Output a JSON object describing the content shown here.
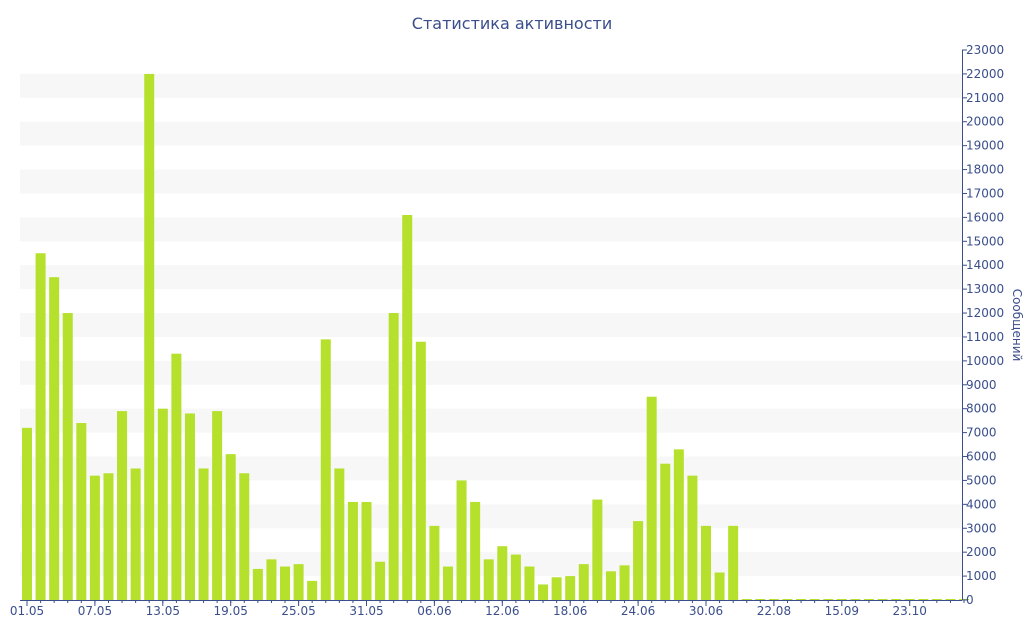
{
  "chart_data": {
    "type": "bar",
    "title": "Статистика активности",
    "ylabel": "Сообщений",
    "ylim": [
      0,
      23000
    ],
    "ytick_step": 1000,
    "y_axis_side": "right",
    "grid": "horizontal bands",
    "bar_color": "#b5e02c",
    "band_color": "#f7f7f7",
    "axis_color": "#3a4e8c",
    "x_tick_labels": [
      "01.05",
      "07.05",
      "13.05",
      "19.05",
      "25.05",
      "31.05",
      "06.06",
      "12.06",
      "18.06",
      "24.06",
      "30.06",
      "22.08",
      "15.09",
      "23.10"
    ],
    "values": [
      7200,
      14500,
      13500,
      12000,
      7400,
      5200,
      5300,
      7900,
      5500,
      22000,
      8000,
      10300,
      7800,
      5500,
      7900,
      6100,
      5300,
      1300,
      1700,
      1400,
      1500,
      800,
      10900,
      5500,
      4100,
      4100,
      1600,
      12000,
      16100,
      10800,
      3100,
      1400,
      5000,
      4100,
      1700,
      2250,
      1900,
      1400,
      650,
      950,
      1000,
      1500,
      4200,
      1200,
      1450,
      3300,
      8500,
      5700,
      6300,
      5200,
      3100,
      1150,
      3100,
      0,
      0,
      0,
      0,
      0,
      0,
      0,
      0,
      0,
      0,
      0,
      0,
      0,
      0,
      0,
      0,
      0
    ]
  }
}
